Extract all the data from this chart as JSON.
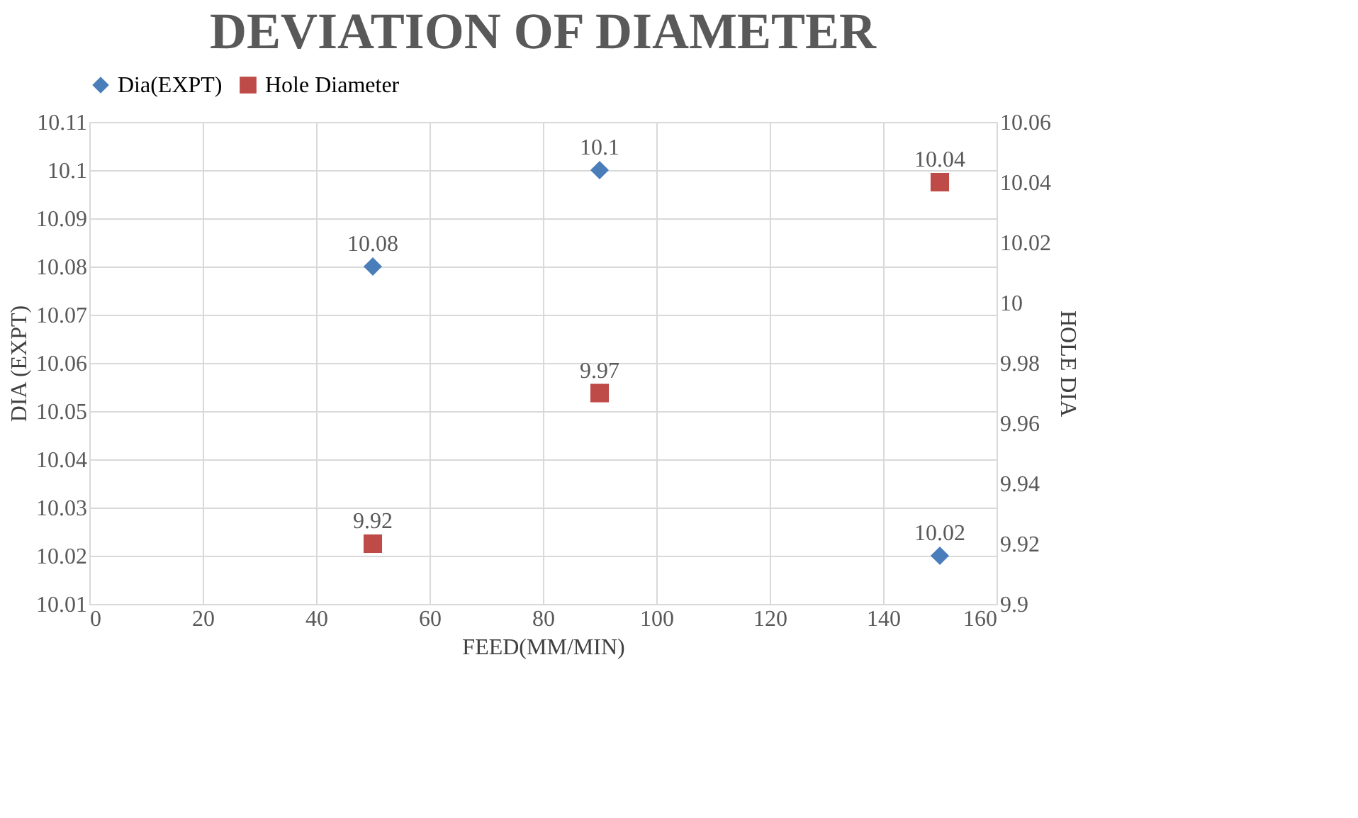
{
  "chart_data": {
    "type": "scatter",
    "title": "DEVIATION OF DIAMETER",
    "xlabel": "FEED(MM/MIN)",
    "ylabel": "DIA (EXPT)",
    "y2label": "HOLE DIA",
    "x": [
      50,
      90,
      150
    ],
    "series": [
      {
        "name": "Dia(EXPT)",
        "color": "#4a7ebb",
        "marker": "diamond",
        "values": [
          10.08,
          10.1,
          10.02
        ]
      },
      {
        "name": "Hole Diameter",
        "color": "#be4b48",
        "marker": "square",
        "axis": "y2",
        "values": [
          9.92,
          9.97,
          10.04
        ]
      }
    ],
    "xlim": [
      0,
      160
    ],
    "xticks": [
      0,
      20,
      40,
      60,
      80,
      100,
      120,
      140,
      160
    ],
    "ylim": [
      10.01,
      10.11
    ],
    "yticks": [
      10.01,
      10.02,
      10.03,
      10.04,
      10.05,
      10.06,
      10.07,
      10.08,
      10.09,
      10.1,
      10.11
    ],
    "y2lim": [
      9.9,
      10.06
    ],
    "y2ticks": [
      9.9,
      9.92,
      9.94,
      9.96,
      9.98,
      10,
      10.02,
      10.04,
      10.06
    ],
    "grid": true,
    "legend": "top",
    "data_labels": true
  }
}
